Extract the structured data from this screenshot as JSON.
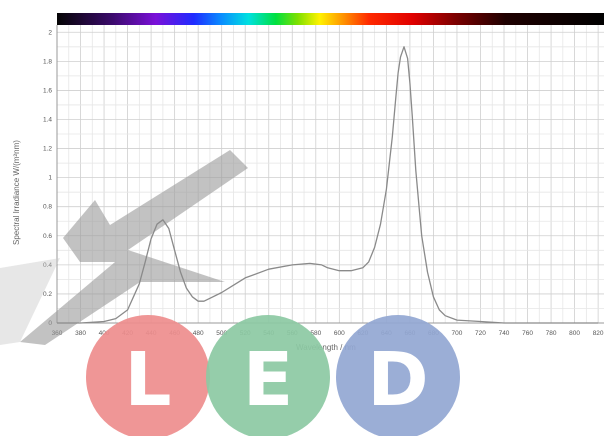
{
  "chart_data": {
    "type": "line",
    "xlabel": "Wavelength / nm",
    "ylabel": "Spectral Irradiance W/(m²nm)",
    "xlim": [
      360,
      825
    ],
    "ylim": [
      0,
      2.05
    ],
    "x_ticks": [
      "360",
      "380",
      "400",
      "420",
      "440",
      "460",
      "480",
      "500",
      "520",
      "540",
      "560",
      "580",
      "600",
      "620",
      "640",
      "660",
      "680",
      "700",
      "720",
      "740",
      "760",
      "780",
      "800",
      "820"
    ],
    "y_ticks": [
      "0",
      "0.2",
      "0.4",
      "0.6",
      "0.8",
      "1",
      "1.2",
      "1.4",
      "1.6",
      "1.8",
      "2"
    ],
    "grid": true,
    "spectrum_bar": true,
    "series": [
      {
        "color": "#8a8a8a",
        "x": [
          360,
          380,
          400,
          410,
          420,
          430,
          435,
          440,
          445,
          450,
          455,
          460,
          465,
          470,
          475,
          480,
          485,
          490,
          500,
          510,
          520,
          540,
          560,
          575,
          585,
          590,
          600,
          610,
          620,
          625,
          630,
          635,
          640,
          645,
          648,
          650,
          652,
          655,
          658,
          660,
          662,
          665,
          668,
          670,
          675,
          680,
          685,
          690,
          700,
          720,
          740,
          760,
          780,
          800,
          820
        ],
        "y": [
          0,
          0,
          0.01,
          0.03,
          0.09,
          0.27,
          0.42,
          0.58,
          0.68,
          0.71,
          0.65,
          0.5,
          0.35,
          0.24,
          0.18,
          0.15,
          0.15,
          0.17,
          0.21,
          0.26,
          0.31,
          0.37,
          0.4,
          0.41,
          0.4,
          0.38,
          0.36,
          0.36,
          0.38,
          0.42,
          0.52,
          0.68,
          0.92,
          1.28,
          1.55,
          1.72,
          1.83,
          1.9,
          1.82,
          1.65,
          1.42,
          1.05,
          0.78,
          0.6,
          0.35,
          0.18,
          0.09,
          0.05,
          0.02,
          0.01,
          0,
          0,
          0,
          0,
          0
        ]
      }
    ]
  },
  "logo": {
    "letters": [
      "L",
      "E",
      "D"
    ],
    "colors": [
      "#ee8d8d",
      "#8cc9a3",
      "#93a7d3"
    ],
    "watermark_color": "#9a9a9a"
  }
}
